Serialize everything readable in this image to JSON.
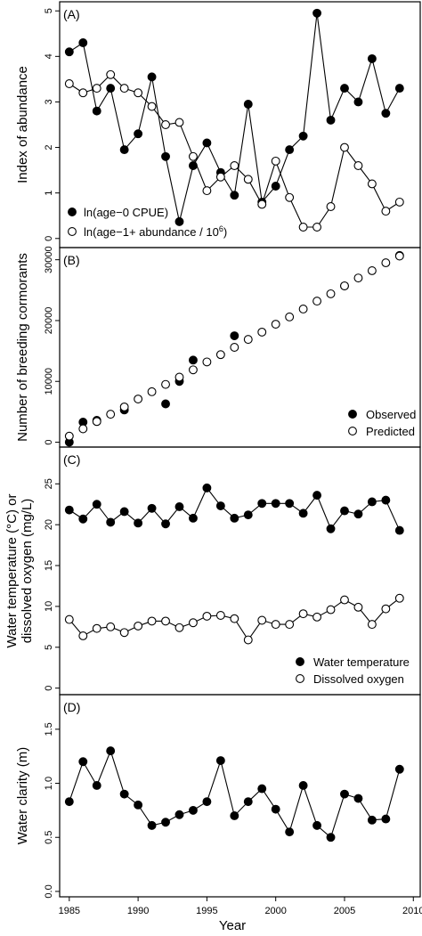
{
  "figure": {
    "xlabel": "Year",
    "x_ticks": [
      1985,
      1990,
      1995,
      2000,
      2005,
      2010
    ],
    "xlim": [
      1984.3,
      2010.5
    ]
  },
  "chart_data": [
    {
      "type": "line",
      "panel_label": "(A)",
      "ylabel_lines": [
        "Index of abundance"
      ],
      "ylim": [
        -0.2,
        5.2
      ],
      "y_ticks": [
        0,
        1,
        2,
        3,
        4,
        5
      ],
      "legend_position": "bottom-left",
      "series": [
        {
          "name": "ln(age−0 CPUE)",
          "marker": "filled",
          "x": [
            1985,
            1986,
            1987,
            1988,
            1989,
            1990,
            1991,
            1992,
            1993,
            1994,
            1995,
            1996,
            1997,
            1998,
            1999,
            2000,
            2001,
            2002,
            2003,
            2004,
            2005,
            2006,
            2007,
            2008,
            2009
          ],
          "values": [
            4.1,
            4.3,
            2.8,
            3.3,
            1.95,
            2.3,
            3.55,
            1.8,
            0.37,
            1.6,
            2.1,
            1.45,
            0.95,
            2.95,
            0.8,
            1.15,
            1.95,
            2.25,
            4.95,
            2.6,
            3.3,
            3.0,
            3.95,
            2.75,
            3.3
          ]
        },
        {
          "name_prefix": "ln(age−1+ abundance / 10",
          "name_exp": "6",
          "name_suffix": ")",
          "marker": "open",
          "x": [
            1985,
            1986,
            1987,
            1988,
            1989,
            1990,
            1991,
            1992,
            1993,
            1994,
            1995,
            1996,
            1997,
            1998,
            1999,
            2000,
            2001,
            2002,
            2003,
            2004,
            2005,
            2006,
            2007,
            2008,
            2009
          ],
          "values": [
            3.4,
            3.2,
            3.3,
            3.6,
            3.3,
            3.2,
            2.9,
            2.5,
            2.55,
            1.8,
            1.05,
            1.35,
            1.6,
            1.3,
            0.75,
            1.7,
            0.9,
            0.25,
            0.25,
            0.7,
            2.0,
            1.6,
            1.2,
            0.6,
            0.8
          ]
        }
      ]
    },
    {
      "type": "scatter",
      "panel_label": "(B)",
      "ylabel_lines": [
        "Number of breeding cormorants"
      ],
      "ylim": [
        -800,
        32000
      ],
      "y_ticks": [
        0,
        10000,
        20000,
        30000
      ],
      "legend_position": "bottom-right",
      "series": [
        {
          "name": "Observed",
          "marker": "filled",
          "x": [
            1985,
            1986,
            1987,
            1989,
            1992,
            1993,
            1994,
            1997,
            2005,
            2009
          ],
          "values": [
            0,
            3300,
            3600,
            5300,
            6300,
            10000,
            13500,
            17500,
            25700,
            30700
          ]
        },
        {
          "name": "Predicted",
          "marker": "open",
          "x": [
            1985,
            1986,
            1987,
            1988,
            1989,
            1990,
            1991,
            1992,
            1993,
            1994,
            1995,
            1996,
            1997,
            1998,
            1999,
            2000,
            2001,
            2002,
            2003,
            2004,
            2005,
            2006,
            2007,
            2008,
            2009
          ],
          "values": [
            1000,
            2200,
            3400,
            4600,
            5800,
            7100,
            8300,
            9500,
            10700,
            11900,
            13200,
            14400,
            15600,
            16900,
            18100,
            19400,
            20600,
            21900,
            23200,
            24400,
            25700,
            27000,
            28200,
            29500,
            30600
          ]
        }
      ]
    },
    {
      "type": "line",
      "panel_label": "(C)",
      "ylabel_lines": [
        "Water temperature (°C) or",
        "dissolved oxygen (mg/L)"
      ],
      "ylim": [
        -0.8,
        29.5
      ],
      "y_ticks": [
        0,
        5,
        10,
        15,
        20,
        25
      ],
      "legend_position": "bottom-right",
      "series": [
        {
          "name": "Water temperature",
          "marker": "filled",
          "x": [
            1985,
            1986,
            1987,
            1988,
            1989,
            1990,
            1991,
            1992,
            1993,
            1994,
            1995,
            1996,
            1997,
            1998,
            1999,
            2000,
            2001,
            2002,
            2003,
            2004,
            2005,
            2006,
            2007,
            2008,
            2009
          ],
          "values": [
            21.8,
            20.7,
            22.5,
            20.3,
            21.6,
            20.2,
            22.0,
            20.1,
            22.2,
            20.8,
            24.5,
            22.3,
            20.8,
            21.2,
            22.6,
            22.6,
            22.6,
            21.4,
            23.6,
            19.5,
            21.7,
            21.3,
            22.8,
            23.0,
            19.3
          ]
        },
        {
          "name": "Dissolved oxygen",
          "marker": "open",
          "x": [
            1985,
            1986,
            1987,
            1988,
            1989,
            1990,
            1991,
            1992,
            1993,
            1994,
            1995,
            1996,
            1997,
            1998,
            1999,
            2000,
            2001,
            2002,
            2003,
            2004,
            2005,
            2006,
            2007,
            2008,
            2009
          ],
          "values": [
            8.4,
            6.4,
            7.3,
            7.5,
            6.8,
            7.6,
            8.2,
            8.2,
            7.4,
            8.0,
            8.8,
            8.9,
            8.5,
            5.9,
            8.3,
            7.8,
            7.8,
            9.1,
            8.7,
            9.6,
            10.8,
            9.9,
            7.8,
            9.7,
            11.0
          ]
        }
      ]
    },
    {
      "type": "line",
      "panel_label": "(D)",
      "ylabel_lines": [
        "Water clarity (m)"
      ],
      "ylim": [
        -0.05,
        1.82
      ],
      "y_ticks": [
        0.0,
        0.5,
        1.0,
        1.5
      ],
      "y_tick_labels": [
        "0.0",
        "0.5",
        "1.0",
        "1.5"
      ],
      "series": [
        {
          "marker": "filled",
          "x": [
            1985,
            1986,
            1987,
            1988,
            1989,
            1990,
            1991,
            1992,
            1993,
            1994,
            1995,
            1996,
            1997,
            1998,
            1999,
            2000,
            2001,
            2002,
            2003,
            2004,
            2005,
            2006,
            2007,
            2008,
            2009
          ],
          "values": [
            0.83,
            1.2,
            0.98,
            1.3,
            0.9,
            0.8,
            0.61,
            0.64,
            0.71,
            0.75,
            0.83,
            1.21,
            0.7,
            0.83,
            0.95,
            0.76,
            0.55,
            0.98,
            0.61,
            0.5,
            0.9,
            0.86,
            0.66,
            0.67,
            1.13
          ]
        }
      ]
    }
  ]
}
